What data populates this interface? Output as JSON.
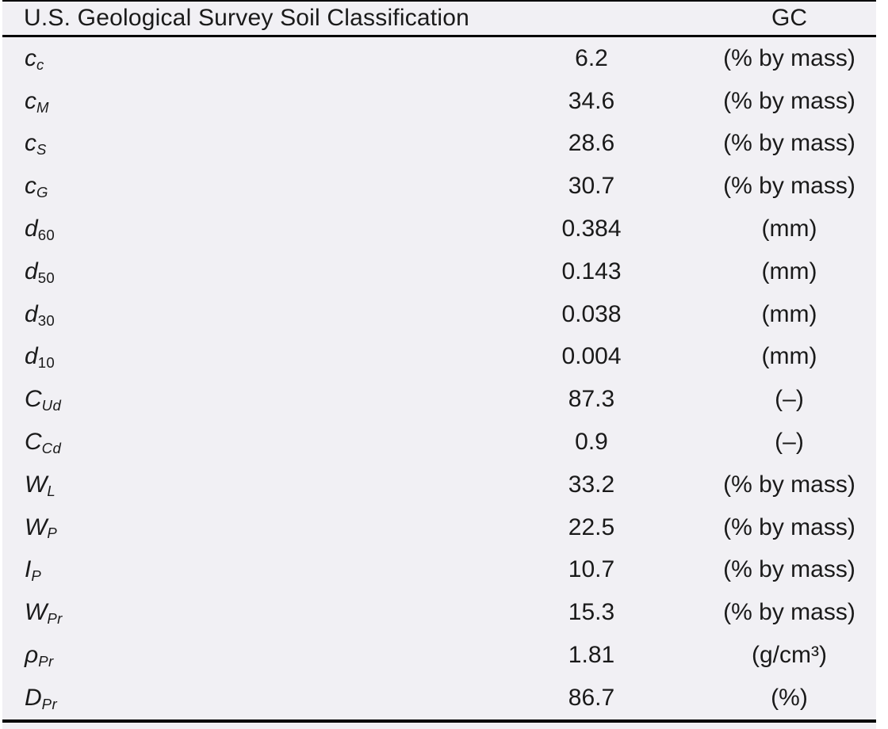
{
  "table": {
    "header": {
      "title": "U.S. Geological Survey Soil Classification",
      "classification": "GC"
    },
    "rows": [
      {
        "symbol_base": "c",
        "symbol_sub": "c",
        "value": "6.2",
        "unit": "(% by mass)"
      },
      {
        "symbol_base": "c",
        "symbol_sub": "M",
        "value": "34.6",
        "unit": "(% by mass)"
      },
      {
        "symbol_base": "c",
        "symbol_sub": "S",
        "value": "28.6",
        "unit": "(% by mass)"
      },
      {
        "symbol_base": "c",
        "symbol_sub": "G",
        "value": "30.7",
        "unit": "(% by mass)"
      },
      {
        "symbol_base": "d",
        "symbol_sub": "60",
        "value": "0.384",
        "unit": "(mm)"
      },
      {
        "symbol_base": "d",
        "symbol_sub": "50",
        "value": "0.143",
        "unit": "(mm)"
      },
      {
        "symbol_base": "d",
        "symbol_sub": "30",
        "value": "0.038",
        "unit": "(mm)"
      },
      {
        "symbol_base": "d",
        "symbol_sub": "10",
        "value": "0.004",
        "unit": "(mm)"
      },
      {
        "symbol_base": "C",
        "symbol_sub": "Ud",
        "value": "87.3",
        "unit": "(–)"
      },
      {
        "symbol_base": "C",
        "symbol_sub": "Cd",
        "value": "0.9",
        "unit": "(–)"
      },
      {
        "symbol_base": "W",
        "symbol_sub": "L",
        "value": "33.2",
        "unit": "(% by mass)"
      },
      {
        "symbol_base": "W",
        "symbol_sub": "P",
        "value": "22.5",
        "unit": "(% by mass)"
      },
      {
        "symbol_base": "I",
        "symbol_sub": "P",
        "value": "10.7",
        "unit": "(% by mass)"
      },
      {
        "symbol_base": "W",
        "symbol_sub": "Pr",
        "value": "15.3",
        "unit": "(% by mass)"
      },
      {
        "symbol_base": "ρ",
        "symbol_sub": "Pr",
        "value": "1.81",
        "unit": "(g/cm³)"
      },
      {
        "symbol_base": "D",
        "symbol_sub": "Pr",
        "value": "86.7",
        "unit": "(%)"
      }
    ]
  },
  "colors": {
    "page_background": "#f1f0f4",
    "text": "#1a1a1a",
    "rule": "#000000"
  }
}
